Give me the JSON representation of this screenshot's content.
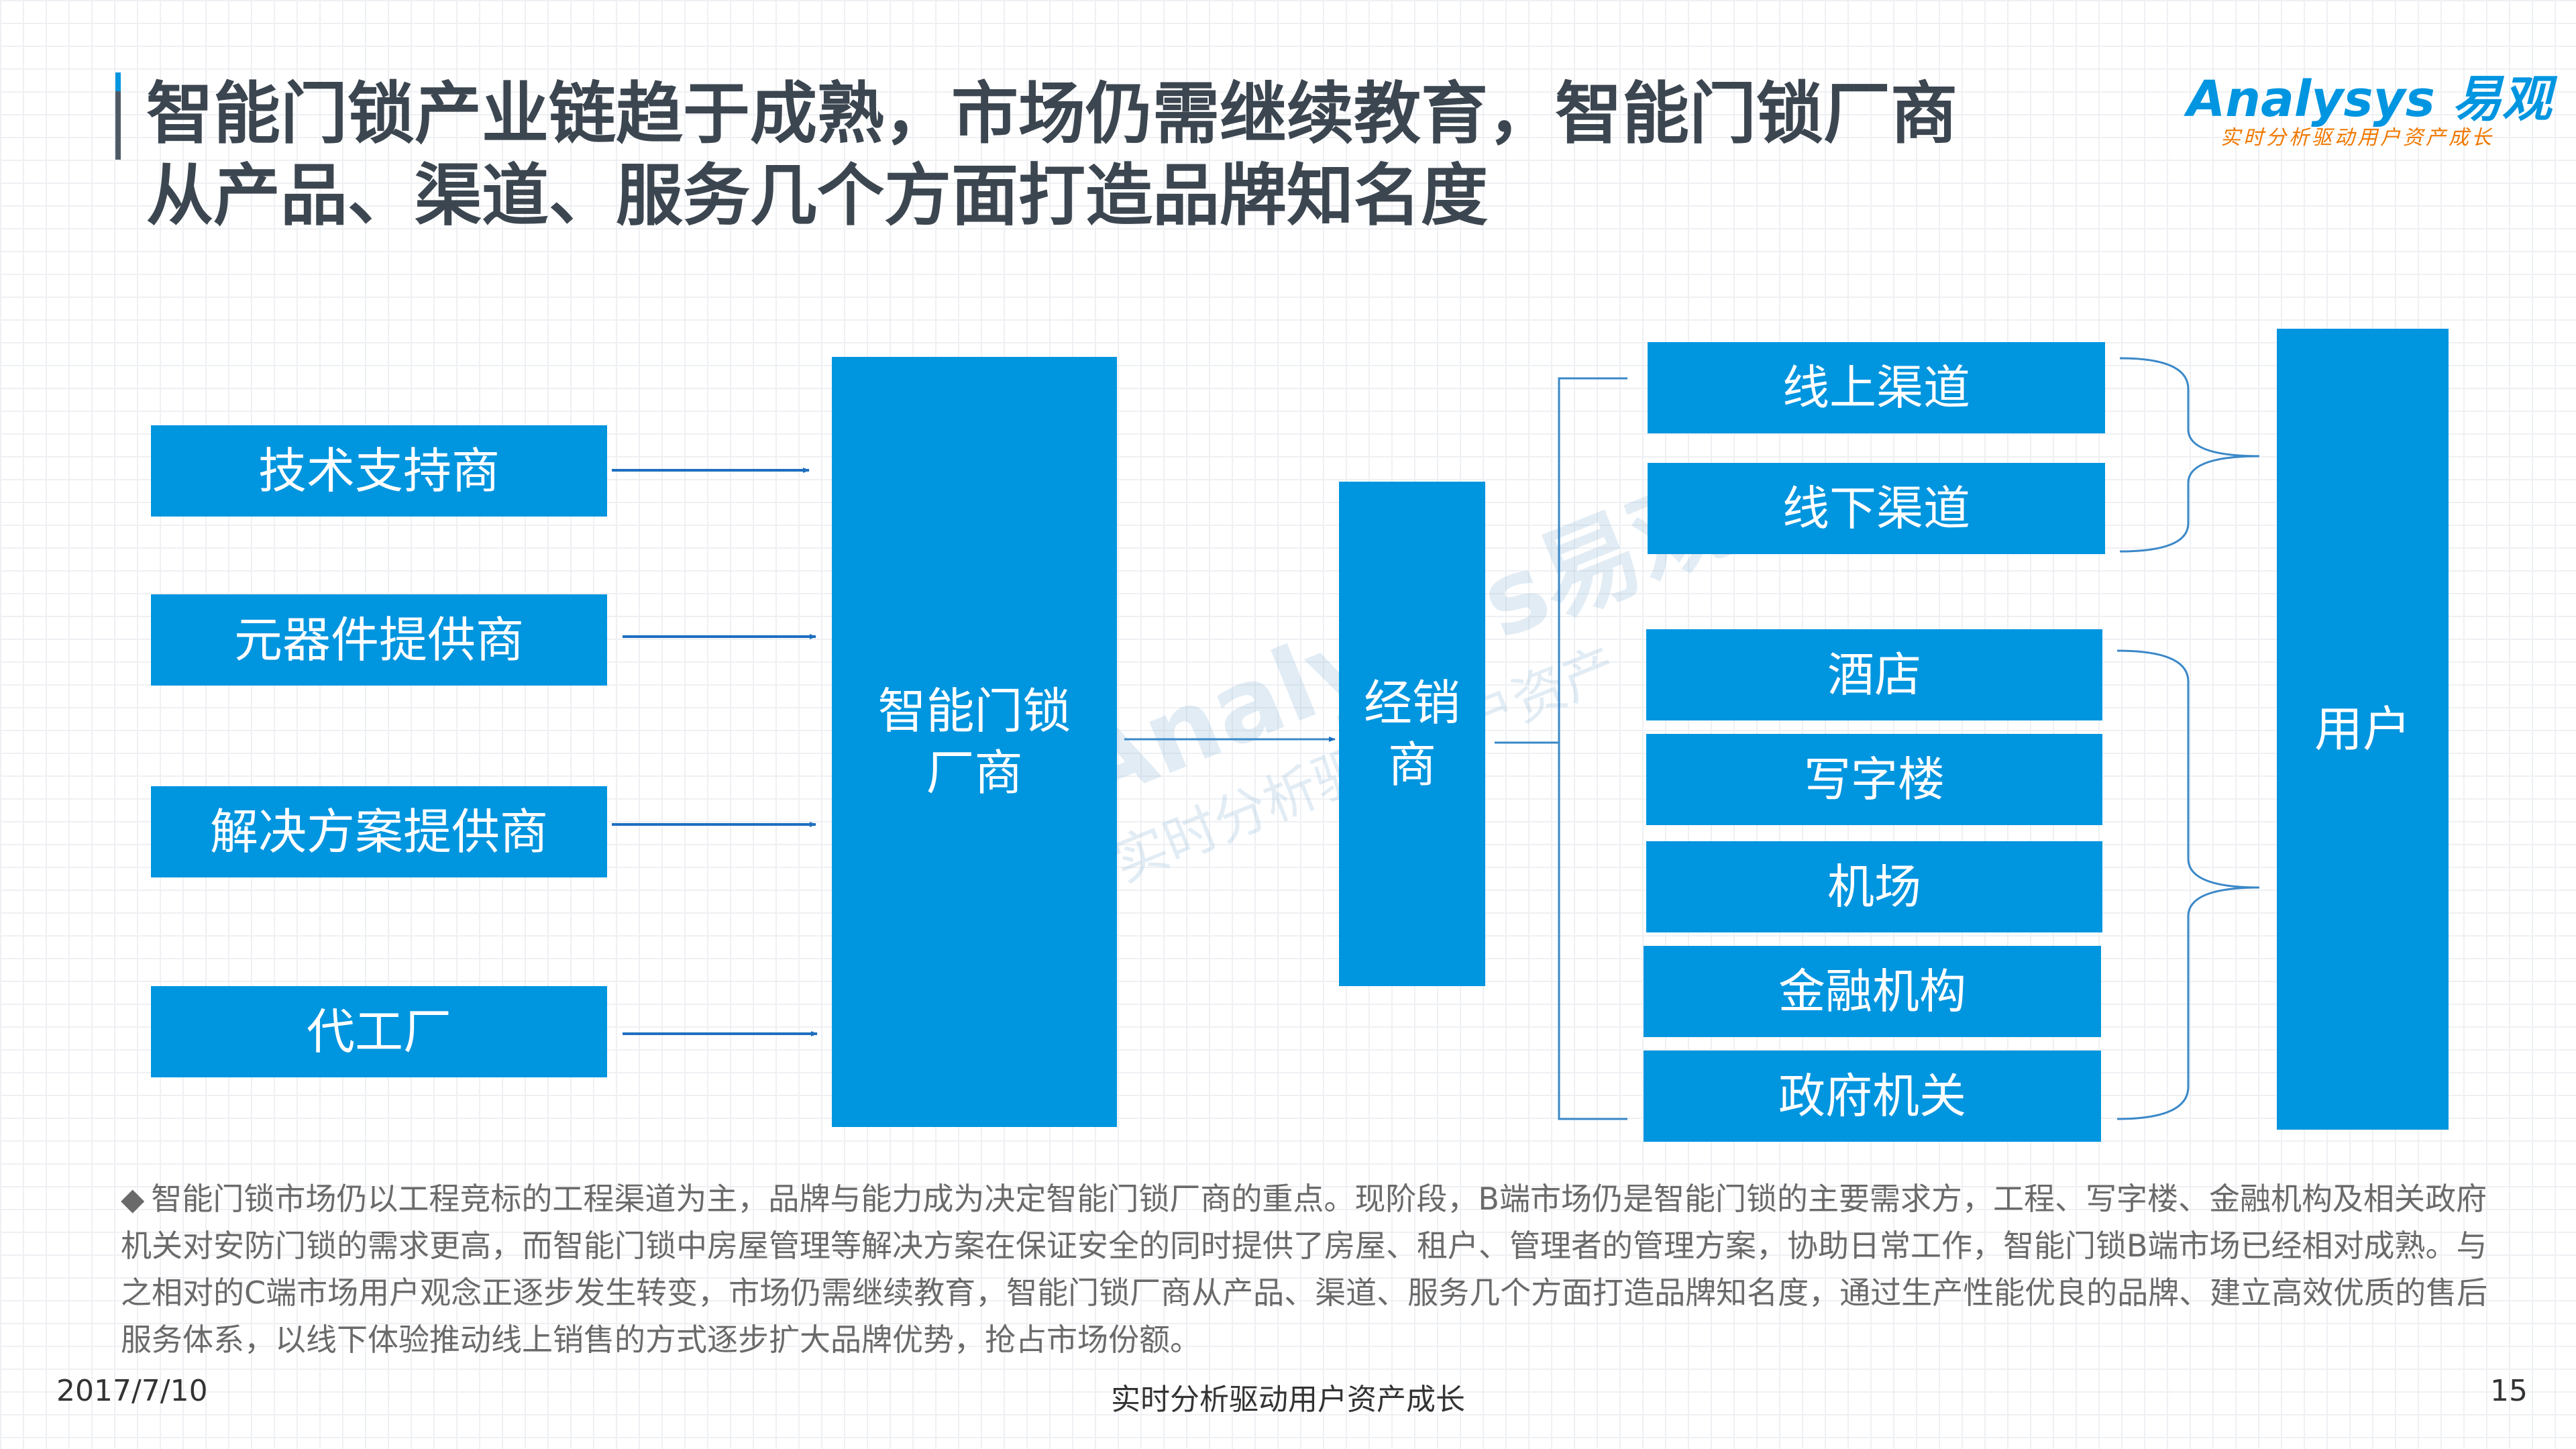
{
  "title": {
    "line1": "智能门锁产业链趋于成熟，市场仍需继续教育，智能门锁厂商",
    "line2": "从产品、渠道、服务几个方面打造品牌知名度"
  },
  "logo": {
    "word": "Analysys",
    "cn": "易观",
    "slogan": "实时分析驱动用户资产成长"
  },
  "watermark": {
    "main": "Analysys易观",
    "sub": "实时分析驱动用户资产"
  },
  "diagram": {
    "suppliers": [
      "技术支持商",
      "元器件提供商",
      "解决方案提供商",
      "代工厂"
    ],
    "manufacturer": "智能门锁厂商",
    "distributor": "经销商",
    "channels": [
      "线上渠道",
      "线下渠道"
    ],
    "b_end": [
      "酒店",
      "写字楼",
      "机场",
      "金融机构",
      "政府机关"
    ],
    "user": "用户"
  },
  "note": {
    "bullet": "◆",
    "text": "智能门锁市场仍以工程竞标的工程渠道为主，品牌与能力成为决定智能门锁厂商的重点。现阶段，B端市场仍是智能门锁的主要需求方，工程、写字楼、金融机构及相关政府机关对安防门锁的需求更高，而智能门锁中房屋管理等解决方案在保证安全的同时提供了房屋、租户、管理者的管理方案，协助日常工作，智能门锁B端市场已经相对成熟。与之相对的C端市场用户观念正逐步发生转变，市场仍需继续教育，智能门锁厂商从产品、渠道、服务几个方面打造品牌知名度，通过生产性能优良的品牌、建立高效优质的售后服务体系，以线下体验推动线上销售的方式逐步扩大品牌优势，抢占市场份额。"
  },
  "footer": {
    "date": "2017/7/10",
    "slogan": "实时分析驱动用户资产成长",
    "page": "15"
  },
  "colors": {
    "box_blue": "#0095df",
    "title_gray": "#3c4650",
    "logo_orange": "#f07800"
  }
}
